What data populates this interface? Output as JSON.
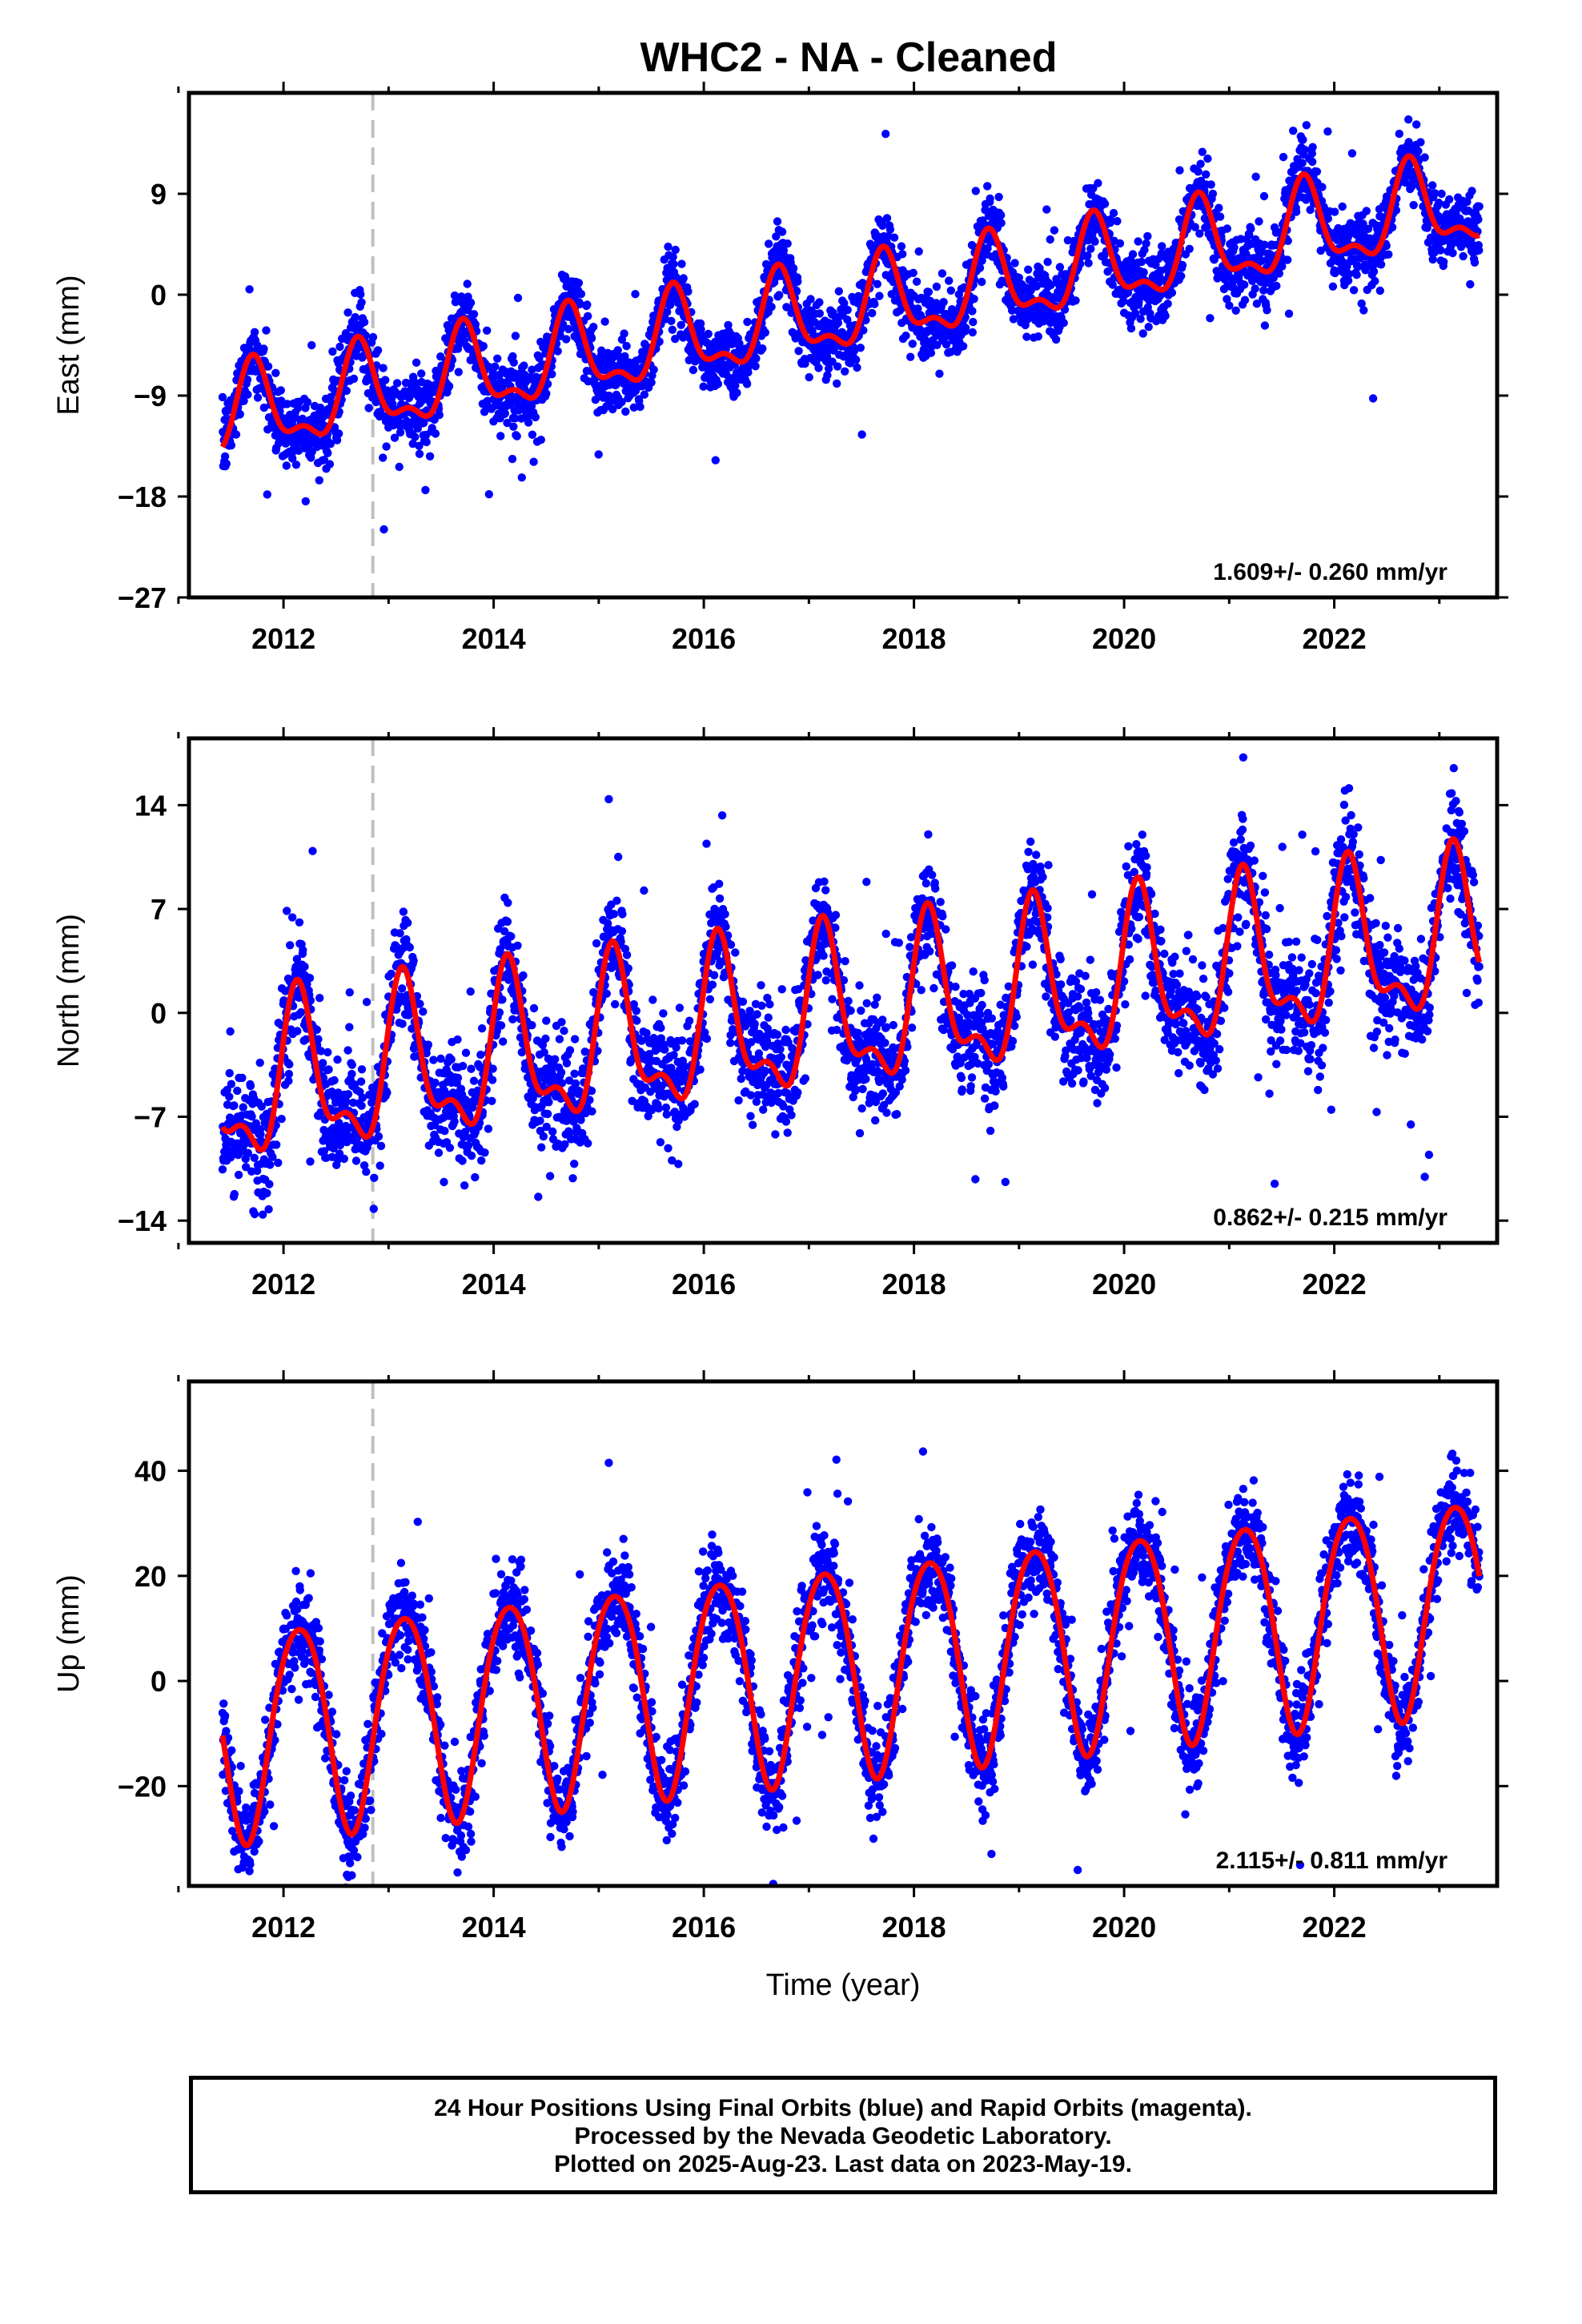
{
  "title": "WHC2  - NA - Cleaned",
  "colors": {
    "data": "#0000ff",
    "model": "#ff0000",
    "marker": "#c0c0c0",
    "axes": "#000000"
  },
  "chart_data": [
    {
      "type": "scatter",
      "ylabel": "East (mm)",
      "xlabel": "",
      "xlim": [
        2011.1,
        2023.55
      ],
      "ylim": [
        -27,
        18
      ],
      "x_ticks": [
        "2012",
        "2014",
        "2016",
        "2018",
        "2020",
        "2022"
      ],
      "y_ticks": [
        "9",
        "0",
        "−9",
        "−18",
        "−27"
      ],
      "y_tick_values": [
        9,
        0,
        -9,
        -18,
        -27
      ],
      "rate_label": "1.609+/- 0.260 mm/yr",
      "marker_x": 2012.85,
      "data_span": [
        2011.42,
        2023.38
      ],
      "model": {
        "rate": 1.609,
        "ref_year": 2017,
        "offset": -2.0,
        "a_amp": 3.6,
        "a_peak": 0.72,
        "s_amp": 1.6,
        "s_peak": 0.2
      },
      "noise": 1.6,
      "series": [
        {
          "name": "24 Hour Positions",
          "style": "points"
        },
        {
          "name": "",
          "style": "line"
        }
      ]
    },
    {
      "type": "scatter",
      "ylabel": "North (mm)",
      "xlabel": "",
      "xlim": [
        2011.1,
        2023.55
      ],
      "ylim": [
        -15.5,
        18.5
      ],
      "x_ticks": [
        "2012",
        "2014",
        "2016",
        "2018",
        "2020",
        "2022"
      ],
      "y_ticks": [
        "14",
        "7",
        "0",
        "−7",
        "−14"
      ],
      "y_tick_values": [
        14,
        7,
        0,
        -7,
        -14
      ],
      "rate_label": "0.862+/- 0.215 mm/yr",
      "marker_x": 2012.85,
      "data_span": [
        2011.42,
        2023.38
      ],
      "model": {
        "rate": 0.862,
        "ref_year": 2017,
        "offset": -0.5,
        "a_amp": 4.8,
        "a_peak": 0.15,
        "s_amp": 2.2,
        "s_peak": 0.12
      },
      "noise": 1.9,
      "series": [
        {
          "name": "24 Hour Positions",
          "style": "points"
        },
        {
          "name": "",
          "style": "line"
        }
      ]
    },
    {
      "type": "scatter",
      "ylabel": "Up (mm)",
      "xlabel": "Time (year)",
      "xlim": [
        2011.1,
        2023.55
      ],
      "ylim": [
        -39,
        57
      ],
      "x_ticks": [
        "2012",
        "2014",
        "2016",
        "2018",
        "2020",
        "2022"
      ],
      "y_ticks": [
        "40",
        "20",
        "0",
        "−20"
      ],
      "y_tick_values": [
        40,
        20,
        0,
        -20
      ],
      "rate_label": "2.115+/- 0.811 mm/yr",
      "marker_x": 2012.85,
      "data_span": [
        2011.42,
        2023.38
      ],
      "model": {
        "rate": 2.115,
        "ref_year": 2017,
        "offset": 2.0,
        "a_amp": 20.0,
        "a_peak": 0.15,
        "s_amp": 2.0,
        "s_peak": 0.4
      },
      "noise": 4.5,
      "series": [
        {
          "name": "24 Hour Positions",
          "style": "points"
        },
        {
          "name": "",
          "style": "line"
        }
      ]
    }
  ],
  "footer": {
    "line1": "24 Hour Positions Using Final Orbits (blue) and Rapid Orbits (magenta).",
    "line2": "Processed by the Nevada Geodetic Laboratory.",
    "line3": "Plotted on 2025-Aug-23. Last data on 2023-May-19."
  }
}
